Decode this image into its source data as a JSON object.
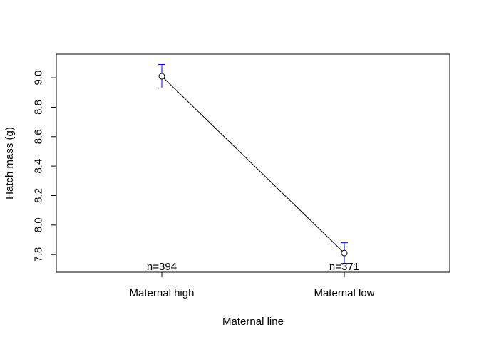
{
  "chart_data": {
    "type": "line",
    "title": "",
    "xlabel": "Maternal line",
    "ylabel": "Hatch mass (g)",
    "categories": [
      "Maternal high",
      "Maternal low"
    ],
    "series": [
      {
        "values": [
          9.01,
          7.81
        ],
        "error_low": [
          8.93,
          7.74
        ],
        "error_high": [
          9.09,
          7.88
        ]
      }
    ],
    "counts": [
      "n=394",
      "n=371"
    ],
    "yticks": [
      "7.8",
      "8.0",
      "8.2",
      "8.4",
      "8.6",
      "8.8",
      "9.0"
    ],
    "ylim": [
      7.68,
      9.16
    ],
    "grid": false,
    "colors": {
      "line": "#000000",
      "error_bars": "#0000ff",
      "axis": "#000000"
    }
  }
}
